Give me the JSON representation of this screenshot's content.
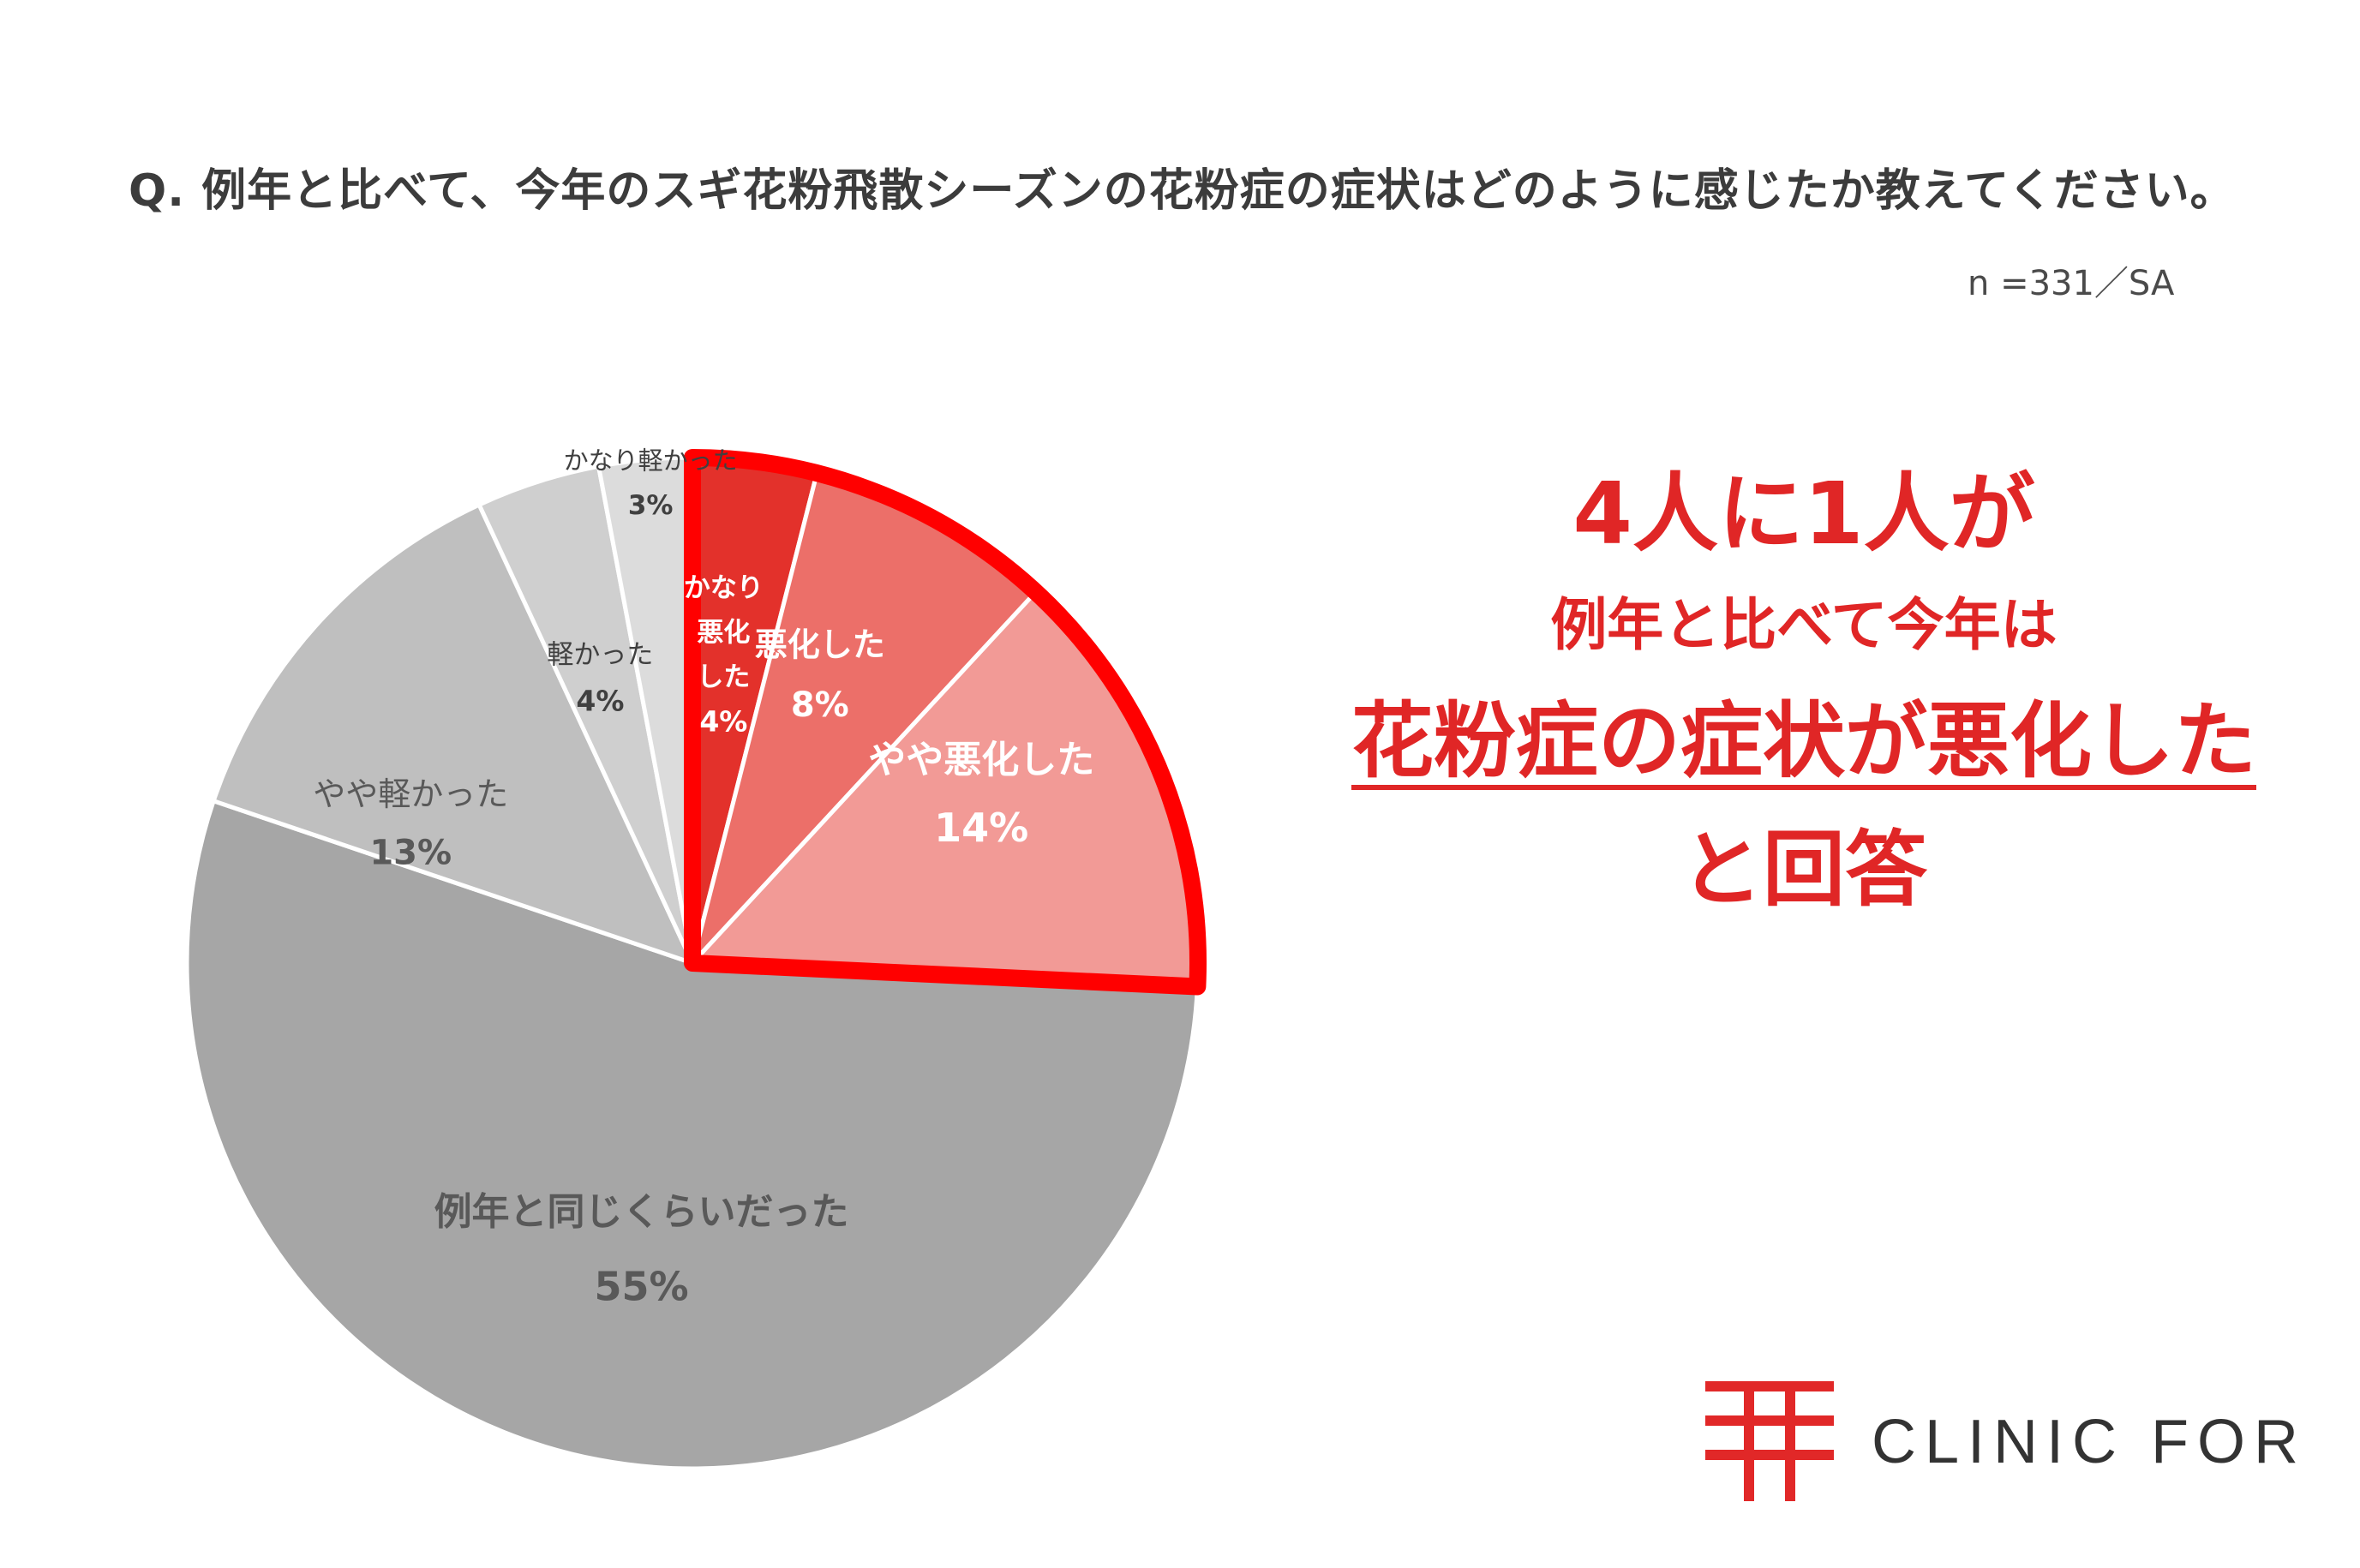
{
  "question": "Q. 例年と比べて、今年のスギ花粉飛散シーズンの花粉症の症状はどのように感じたか教えてください。",
  "sample_note": "n =331／SA",
  "headline": {
    "line1": "4人に1人が",
    "line2": "例年と比べて今年は",
    "line3": "花粉症の症状が悪化した",
    "line4": "と回答"
  },
  "brand": {
    "name": "CLINIC FOR",
    "color": "#e12828"
  },
  "colors": {
    "accent": "#e01f1f",
    "highlight_border": "#ff0000"
  },
  "chart_data": {
    "type": "pie",
    "title": "",
    "start": "12 o'clock, clockwise",
    "slices": [
      {
        "label": "かなり悪化した",
        "label_lines": [
          "かなり",
          "悪化",
          "した"
        ],
        "value": 4,
        "value_text": "4%",
        "color": "#e3312b",
        "text_color": "#ffffff"
      },
      {
        "label": "悪化した",
        "value": 8,
        "value_text": "8%",
        "color": "#ec6f69",
        "text_color": "#ffffff"
      },
      {
        "label": "やや悪化した",
        "value": 14,
        "value_text": "14%",
        "color": "#f29a96",
        "text_color": "#ffffff"
      },
      {
        "label": "例年と同じくらいだった",
        "value": 55,
        "value_text": "55%",
        "color": "#a6a6a6",
        "text_color": "#595959"
      },
      {
        "label": "やや軽かった",
        "value": 13,
        "value_text": "13%",
        "color": "#bfbfbf",
        "text_color": "#595959"
      },
      {
        "label": "軽かった",
        "value": 4,
        "value_text": "4%",
        "color": "#cfcfcf",
        "text_color": "#404040"
      },
      {
        "label": "かなり軽かった",
        "value": 3,
        "value_text": "3%",
        "color": "#dcdcdc",
        "text_color": "#404040"
      }
    ],
    "highlighted_slices": [
      "かなり悪化した",
      "悪化した",
      "やや悪化した"
    ]
  }
}
